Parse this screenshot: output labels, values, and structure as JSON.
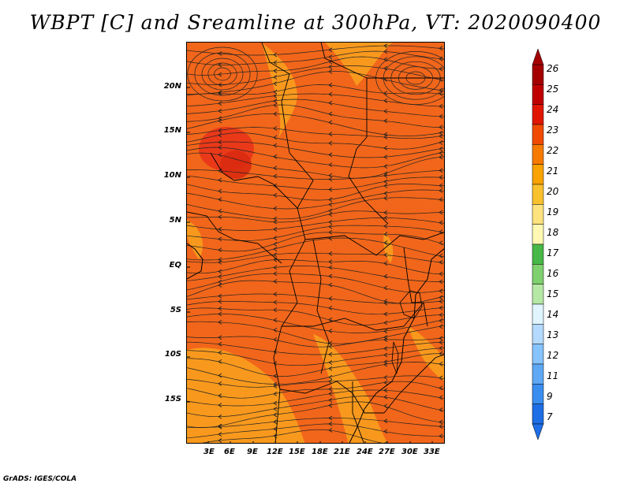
{
  "title": "WBPT [C] and Sreamline at 300hPa, VT: 2020090400",
  "credit": "GrADS: IGES/COLA",
  "lat_labels": [
    "20N",
    "15N",
    "10N",
    "5N",
    "EQ",
    "5S",
    "10S",
    "15S"
  ],
  "lon_labels": [
    "3E",
    "6E",
    "9E",
    "12E",
    "15E",
    "18E",
    "21E",
    "24E",
    "27E",
    "30E",
    "33E"
  ],
  "colorbar": {
    "labels": [
      "26",
      "25",
      "24",
      "23",
      "22",
      "21",
      "20",
      "19",
      "18",
      "17",
      "16",
      "15",
      "14",
      "13",
      "12",
      "11",
      "9",
      "7"
    ],
    "colors": [
      "#a50000",
      "#c00000",
      "#e11600",
      "#f04a00",
      "#f77a00",
      "#f9a200",
      "#fac12e",
      "#fde27e",
      "#fef8b2",
      "#48b848",
      "#7fd16f",
      "#b5e8a5",
      "#e0f5ff",
      "#b4dbff",
      "#86c3ff",
      "#5ea8f5",
      "#3a8ef0",
      "#1e6ee6"
    ]
  },
  "map": {
    "background": "#f1661a",
    "hot_color": "#e8341a",
    "warm_color": "#f9a21f"
  }
}
